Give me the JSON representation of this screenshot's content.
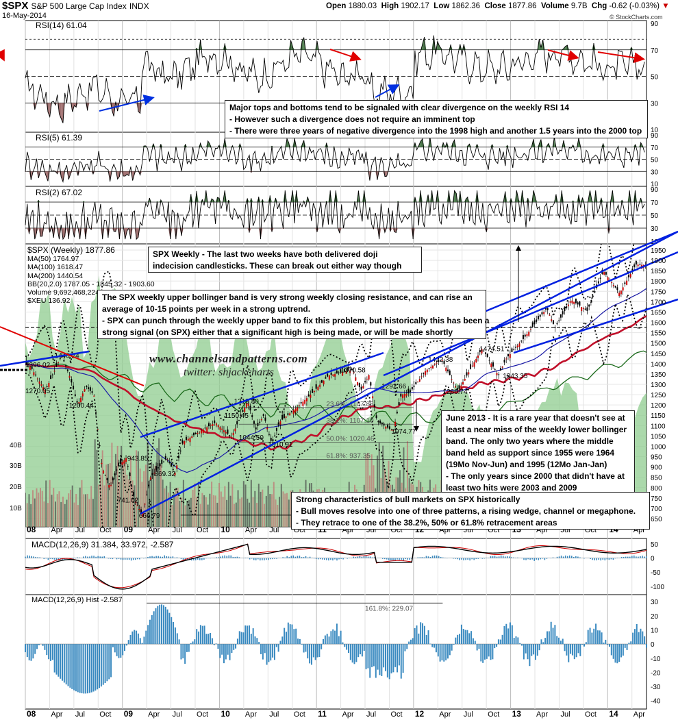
{
  "header": {
    "ticker": "$SPX",
    "name": "S&P 500 Large Cap Index",
    "exchange": "INDX",
    "date": "16-May-2014",
    "open_label": "Open",
    "open": "1880.03",
    "high_label": "High",
    "high": "1902.17",
    "low_label": "Low",
    "low": "1862.36",
    "close_label": "Close",
    "close": "1877.86",
    "volume_label": "Volume",
    "volume": "9.7B",
    "chg_label": "Chg",
    "chg": "-0.62 (-0.03%)",
    "copyright": "© StockCharts.com"
  },
  "watermark": {
    "line1": "www.channelsandpatterns.com",
    "line2": "twitter: shjackcharts"
  },
  "colors": {
    "price_up": "#cc0000",
    "price_down": "#000000",
    "volume_down": "#c07070",
    "volume_up": "#4a4a4a",
    "xeu_area": "#8fcc8f",
    "ma50": "#1a1aa6",
    "ma100": "#c0102a",
    "ma200": "#1a6a1a",
    "bb": "#000000",
    "trendline": "#0020e0",
    "rsi_overbought": "#4c7a4c",
    "rsi_oversold": "#a07070",
    "macd_line": "#000000",
    "macd_signal": "#cc0000",
    "histogram": "#3a8ac0",
    "divergence_arrow_red": "#e00000",
    "divergence_arrow_blue": "#0030e0"
  },
  "panels": {
    "rsi14": {
      "label": "RSI(14) 61.04",
      "ticks": [
        "90",
        "70",
        "50",
        "30",
        "10"
      ]
    },
    "rsi5": {
      "label": "RSI(5) 61.39",
      "ticks": [
        "90",
        "70",
        "50",
        "30",
        "10"
      ]
    },
    "rsi2": {
      "label": "RSI(2) 67.02",
      "ticks": [
        "90",
        "70",
        "50",
        "30",
        "10"
      ]
    },
    "price": {
      "legend": [
        "$SPX (Weekly) 1877.86",
        "MA(50) 1764.97",
        "MA(100) 1618.47",
        "MA(200) 1440.54",
        "BB(20,2.0) 1787.05 - 1845.32 - 1903.60",
        "Volume 9,692,468,224",
        "$XEU 136.92"
      ],
      "price_ticks": [
        "1950",
        "1900",
        "1850",
        "1800",
        "1750",
        "1700",
        "1650",
        "1600",
        "1550",
        "1500",
        "1450",
        "1400",
        "1350",
        "1300",
        "1250",
        "1200",
        "1150",
        "1100",
        "1050",
        "1000",
        "950",
        "900",
        "850",
        "800",
        "750",
        "700",
        "650"
      ],
      "volume_ticks": [
        "40B",
        "30B",
        "20B",
        "10B"
      ],
      "price_labels": [
        "1396.02",
        "1440.24",
        "1270.05",
        "1200.44",
        "943.85",
        "869.32",
        "741.02",
        "666.79",
        "1219.80",
        "1150.45",
        "1044.50",
        "1010.91",
        "1370.58",
        "1292.66",
        "1074.77",
        "1422.38",
        "1266.74",
        "1474.51",
        "1343.35"
      ],
      "fib_labels": [
        "23.6%: 1187.88",
        "38.2%: 1107.10",
        "50.0%: 1020.46",
        "61.8%: 937.35",
        "161.8%: 229.07"
      ]
    },
    "macd": {
      "label": "MACD(12,26,9) 31.384, 33.972, -2.587",
      "ticks": [
        "50",
        "0",
        "-50",
        "-100"
      ]
    },
    "hist": {
      "label": "MACD(12,26,9) Hist -2.587",
      "ticks": [
        "30",
        "20",
        "10",
        "0",
        "-10",
        "-20",
        "-30",
        "-40"
      ]
    }
  },
  "x_axis": [
    "08",
    "Apr",
    "Jul",
    "Oct",
    "09",
    "Apr",
    "Jul",
    "Oct",
    "10",
    "Apr",
    "Jul",
    "Oct",
    "11",
    "Apr",
    "Jul",
    "Oct",
    "12",
    "Apr",
    "Jul",
    "Oct",
    "13",
    "Apr",
    "Jul",
    "Oct",
    "14",
    "Apr"
  ],
  "notes": {
    "rsi_divergence": [
      "Major tops and bottoms tend to be signaled with clear divergence on the weekly RSI 14",
      "- However such a divergence does not require an imminent top",
      "- There were three years of negative divergence into the 1998 high and another 1.5 years into the 2000 top"
    ],
    "doji": [
      "SPX Weekly - The last two weeks have both delivered doji",
      "indecision candlesticks. These can break out either way though"
    ],
    "bollinger": [
      "The SPX weekly upper bollinger band is very strong weekly closing resistance, and can rise an",
      "average of 10-15 points per week in a strong uptrend.",
      "- SPX can punch through the weekly upper band to fix this problem, but historically this has been a",
      "strong signal (on SPX) either that a significant high is being made, or will be made shortly"
    ],
    "june2013": [
      "June 2013 - It is a rare year that doesn't see at",
      "least a near miss of the weekly lower bollinger",
      "band. The only two years where the middle",
      "band held as support since 1955 were 1964",
      "(19Mo Nov-Jun) and 1995 (12Mo Jan-Jan)",
      "- The only years since 2000 that didn't have at",
      "least two hits were 2003 and 2009"
    ],
    "bull": [
      "Strong characteristics of bull markets on SPX historically",
      "- Bull moves resolve into one of three patterns, a rising wedge, channel or megaphone.",
      "- They retrace to one of the 38.2%, 50% or 61.8% retracement areas"
    ]
  },
  "chart_data": {
    "type": "line",
    "title": "$SPX S&P 500 Large Cap Index INDX",
    "period": "Weekly",
    "x_range": [
      "2008-01",
      "2014-05"
    ],
    "ylim": [
      650,
      1950
    ],
    "grid": true,
    "legend_placement": "top-left",
    "series": [
      {
        "name": "$SPX (Weekly)",
        "points": [
          [
            "2008-01",
            1396.02
          ],
          [
            "2008-02",
            1330
          ],
          [
            "2008-03",
            1270.05
          ],
          [
            "2008-05",
            1440.24
          ],
          [
            "2008-06",
            1340
          ],
          [
            "2008-07",
            1200.44
          ],
          [
            "2008-08",
            1290
          ],
          [
            "2008-09",
            1250
          ],
          [
            "2008-10",
            900
          ],
          [
            "2008-11",
            800
          ],
          [
            "2008-12",
            903
          ],
          [
            "2009-01",
            943.85
          ],
          [
            "2009-02",
            741.02
          ],
          [
            "2009-03",
            666.79
          ],
          [
            "2009-04",
            850
          ],
          [
            "2009-06",
            943
          ],
          [
            "2009-07",
            869.32
          ],
          [
            "2009-08",
            1020
          ],
          [
            "2009-10",
            1070
          ],
          [
            "2009-12",
            1115
          ],
          [
            "2010-02",
            1044.5
          ],
          [
            "2010-04",
            1219.8
          ],
          [
            "2010-05",
            1080
          ],
          [
            "2010-06",
            1150.45
          ],
          [
            "2010-07",
            1010.91
          ],
          [
            "2010-08",
            1120
          ],
          [
            "2010-10",
            1185
          ],
          [
            "2010-12",
            1258
          ],
          [
            "2011-02",
            1343
          ],
          [
            "2011-05",
            1370.58
          ],
          [
            "2011-06",
            1270
          ],
          [
            "2011-07",
            1345
          ],
          [
            "2011-08",
            1120
          ],
          [
            "2011-10",
            1074.77
          ],
          [
            "2011-11",
            1250
          ],
          [
            "2011-12",
            1257
          ],
          [
            "2012-02",
            1365
          ],
          [
            "2012-04",
            1422.38
          ],
          [
            "2012-06",
            1266.74
          ],
          [
            "2012-08",
            1405
          ],
          [
            "2012-09",
            1474.51
          ],
          [
            "2012-11",
            1343.35
          ],
          [
            "2012-12",
            1426
          ],
          [
            "2013-02",
            1515
          ],
          [
            "2013-05",
            1669
          ],
          [
            "2013-06",
            1573
          ],
          [
            "2013-08",
            1709
          ],
          [
            "2013-10",
            1655
          ],
          [
            "2013-12",
            1848
          ],
          [
            "2014-02",
            1741
          ],
          [
            "2014-04",
            1880
          ],
          [
            "2014-05",
            1877.86
          ]
        ]
      },
      {
        "name": "MA(50)",
        "value": 1764.97
      },
      {
        "name": "MA(100)",
        "value": 1618.47
      },
      {
        "name": "MA(200)",
        "value": 1440.54
      },
      {
        "name": "BB(20,2.0)",
        "values": [
          1787.05,
          1845.32,
          1903.6
        ]
      },
      {
        "name": "Volume",
        "value": 9692468224
      },
      {
        "name": "$XEU",
        "value": 136.92
      },
      {
        "name": "RSI(14)",
        "value": 61.04,
        "ylim": [
          10,
          90
        ]
      },
      {
        "name": "RSI(5)",
        "value": 61.39,
        "ylim": [
          10,
          90
        ]
      },
      {
        "name": "RSI(2)",
        "value": 67.02,
        "ylim": [
          10,
          90
        ]
      },
      {
        "name": "MACD(12,26,9)",
        "values": [
          31.384,
          33.972,
          -2.587
        ],
        "ylim": [
          -100,
          50
        ]
      },
      {
        "name": "MACD(12,26,9) Hist",
        "value": -2.587,
        "ylim": [
          -40,
          30
        ]
      }
    ],
    "annotations": {
      "fibonacci": [
        {
          "label": "23.6%",
          "value": 1187.88
        },
        {
          "label": "38.2%",
          "value": 1107.1
        },
        {
          "label": "50.0%",
          "value": 1020.46
        },
        {
          "label": "61.8%",
          "value": 937.35
        },
        {
          "label": "161.8%",
          "value": 229.07
        }
      ]
    }
  }
}
